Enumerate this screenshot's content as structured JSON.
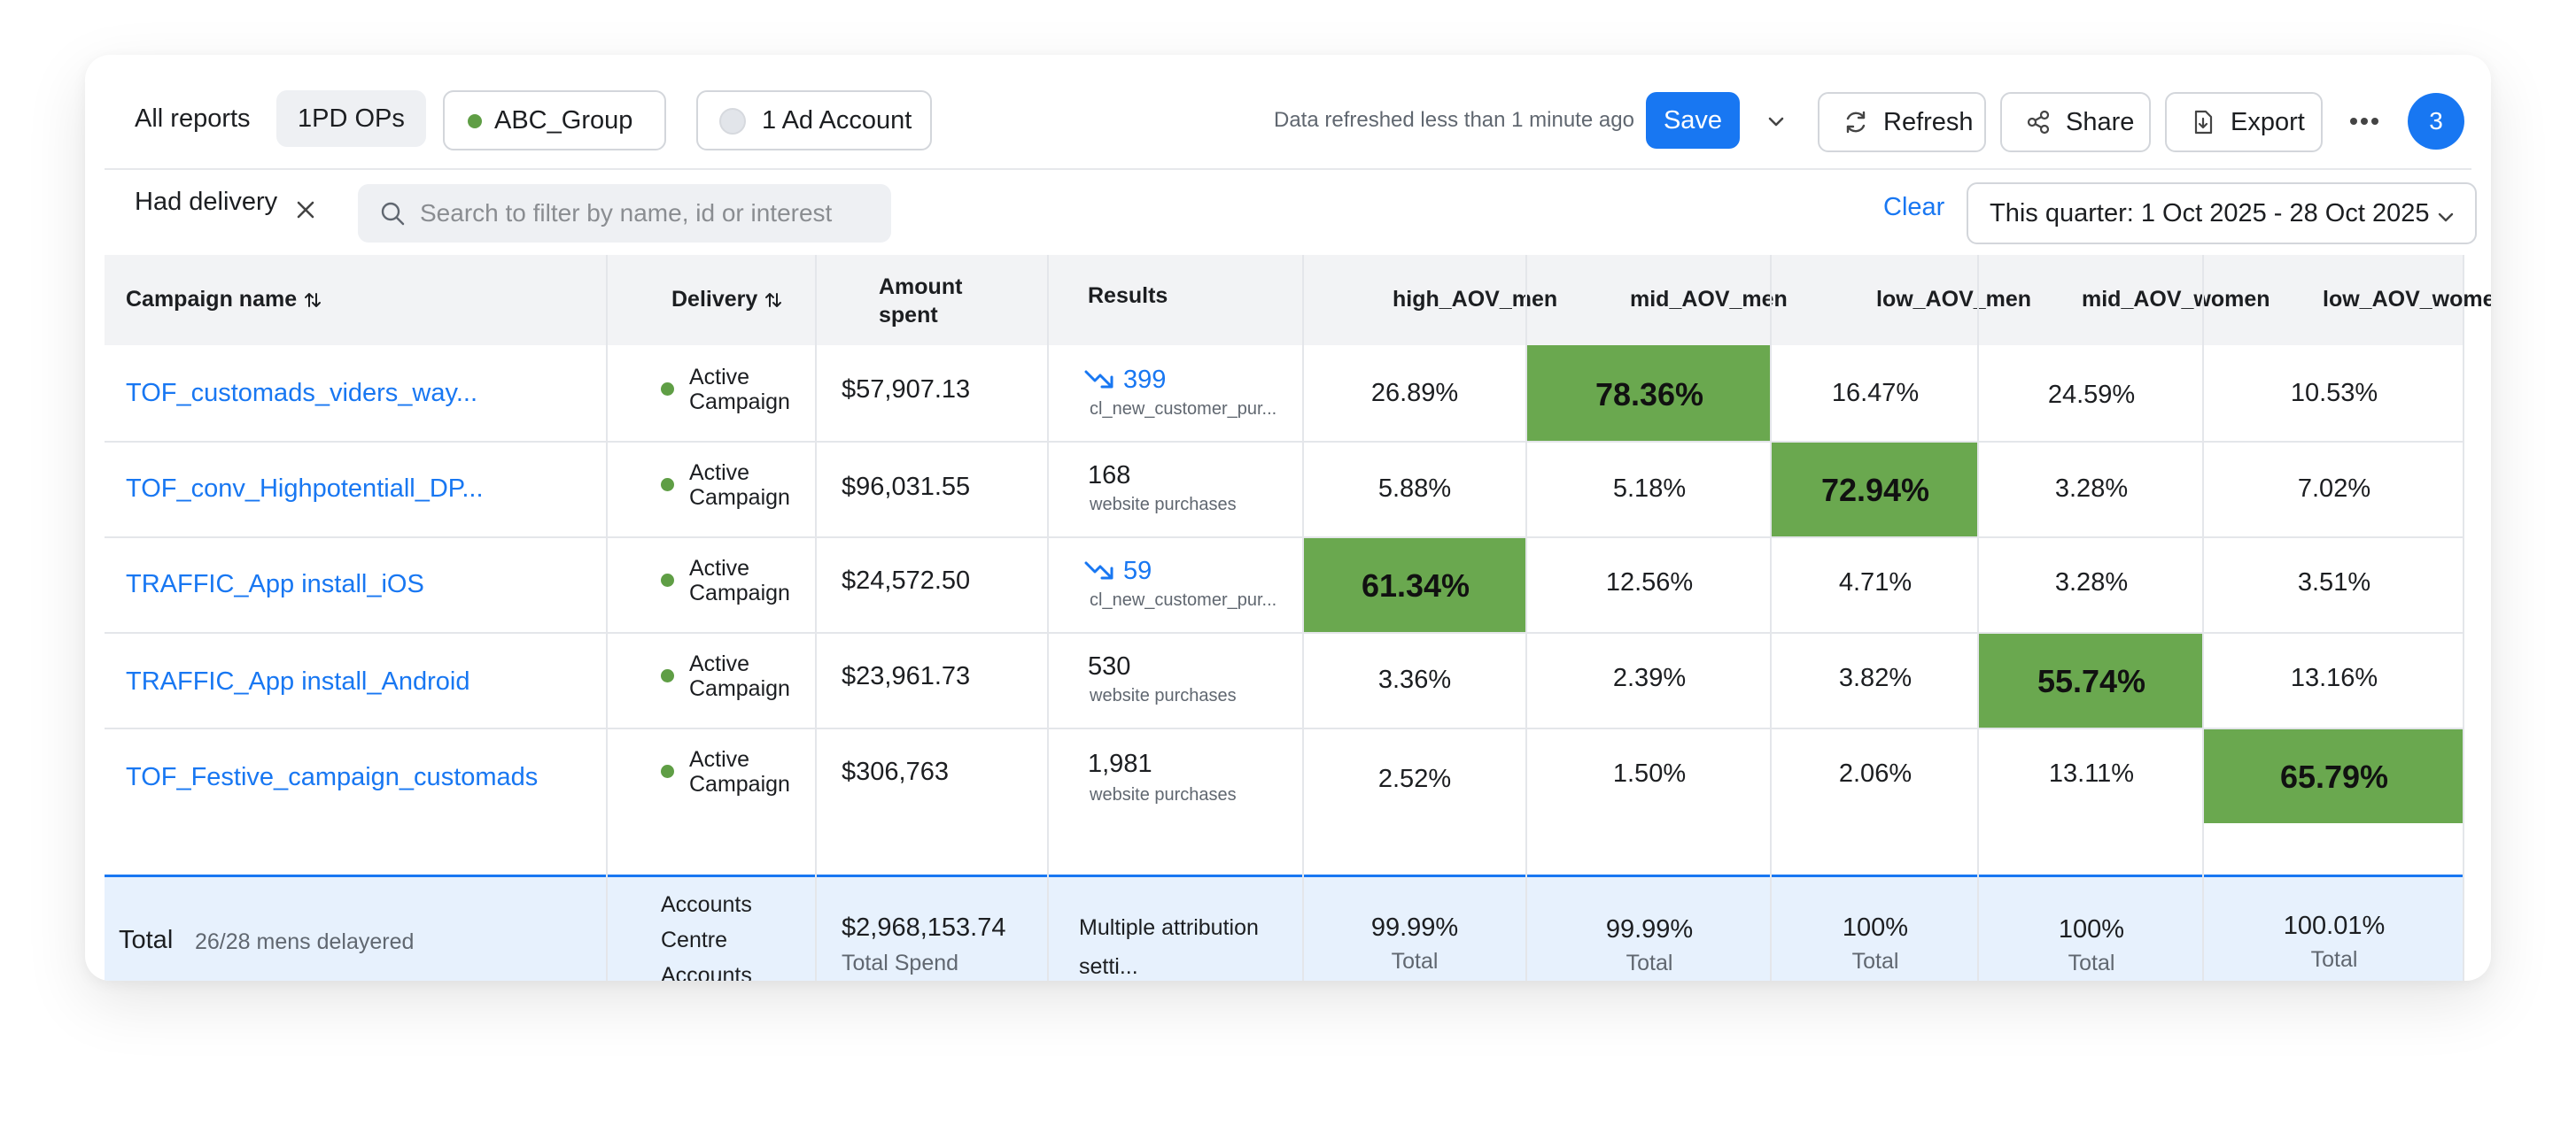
{
  "toolbar": {
    "all_reports": "All reports",
    "active_tab": "1PD OPs",
    "group_label": "ABC_Group",
    "ad_account_label": "1 Ad Account",
    "refreshed_text": "Data refreshed less than 1 minute ago",
    "save_label": "Save",
    "refresh_label": "Refresh",
    "share_label": "Share",
    "export_label": "Export",
    "notification_count": "3"
  },
  "filters": {
    "chip_label": "Had delivery",
    "search_placeholder": "Search to filter by name, id or interest",
    "clear_label": "Clear",
    "date_range": "This quarter: 1 Oct 2025 - 28 Oct 2025"
  },
  "table": {
    "headers": {
      "campaign": "Campaign name",
      "delivery": "Delivery",
      "amount_line1": "Amount",
      "amount_line2": "spent",
      "results": "Results",
      "high_aov_men": "high_AOV_men",
      "mid_aov_men": "mid_AOV_men",
      "low_aov_men": "low_AOV_men",
      "mid_aov_women": "mid_AOV_women",
      "low_aov_women": "low_AOV_women"
    },
    "rows": [
      {
        "name": "TOF_customads_viders_way...",
        "delivery_line1": "Active",
        "delivery_line2": "Campaign",
        "amount": "$57,907.13",
        "result_value": "399",
        "result_trend": "down",
        "result_type": "cl_new_customer_pur...",
        "high_aov_men": "26.89%",
        "mid_aov_men": "78.36%",
        "low_aov_men": "16.47%",
        "mid_aov_women": "24.59%",
        "low_aov_women": "10.53%",
        "highlight": "mid_aov_men"
      },
      {
        "name": "TOF_conv_Highpotentiall_DP...",
        "delivery_line1": "Active",
        "delivery_line2": "Campaign",
        "amount": "$96,031.55",
        "result_value": "168",
        "result_trend": "none",
        "result_type": "website purchases",
        "high_aov_men": "5.88%",
        "mid_aov_men": "5.18%",
        "low_aov_men": "72.94%",
        "mid_aov_women": "3.28%",
        "low_aov_women": "7.02%",
        "highlight": "low_aov_men"
      },
      {
        "name": "TRAFFIC_App install_iOS",
        "delivery_line1": "Active",
        "delivery_line2": "Campaign",
        "amount": "$24,572.50",
        "result_value": "59",
        "result_trend": "down",
        "result_type": "cl_new_customer_pur...",
        "high_aov_men": "61.34%",
        "mid_aov_men": "12.56%",
        "low_aov_men": "4.71%",
        "mid_aov_women": "3.28%",
        "low_aov_women": "3.51%",
        "highlight": "high_aov_men"
      },
      {
        "name": "TRAFFIC_App install_Android",
        "delivery_line1": "Active",
        "delivery_line2": "Campaign",
        "amount": "$23,961.73",
        "result_value": "530",
        "result_trend": "none",
        "result_type": "website purchases",
        "high_aov_men": "3.36%",
        "mid_aov_men": "2.39%",
        "low_aov_men": "3.82%",
        "mid_aov_women": "55.74%",
        "low_aov_women": "13.16%",
        "highlight": "mid_aov_women"
      },
      {
        "name": "TOF_Festive_campaign_customads",
        "delivery_line1": "Active",
        "delivery_line2": "Campaign",
        "amount": "$306,763",
        "result_value": "1,981",
        "result_trend": "none",
        "result_type": "website purchases",
        "high_aov_men": "2.52%",
        "mid_aov_men": "1.50%",
        "low_aov_men": "2.06%",
        "mid_aov_women": "13.11%",
        "low_aov_women": "65.79%",
        "highlight": "low_aov_women"
      }
    ],
    "total": {
      "label": "Total",
      "sub": "26/28 mens delayered",
      "delivery_line1": "Accounts",
      "delivery_line2": "Centre",
      "delivery_line3": "Accounts",
      "amount": "$2,968,153.74",
      "amount_sub": "Total Spend",
      "results_line1": "Multiple attribution",
      "results_line2": "setti...",
      "high_aov_men": "99.99%",
      "mid_aov_men": "99.99%",
      "low_aov_men": "100%",
      "mid_aov_women": "100%",
      "low_aov_women": "100.01%",
      "pct_sub": "Total"
    }
  },
  "colors": {
    "accent": "#1877f2",
    "highlight_green": "#6aa84f",
    "active_dot": "#5f9e45",
    "total_row_bg": "#e7f1fd"
  }
}
